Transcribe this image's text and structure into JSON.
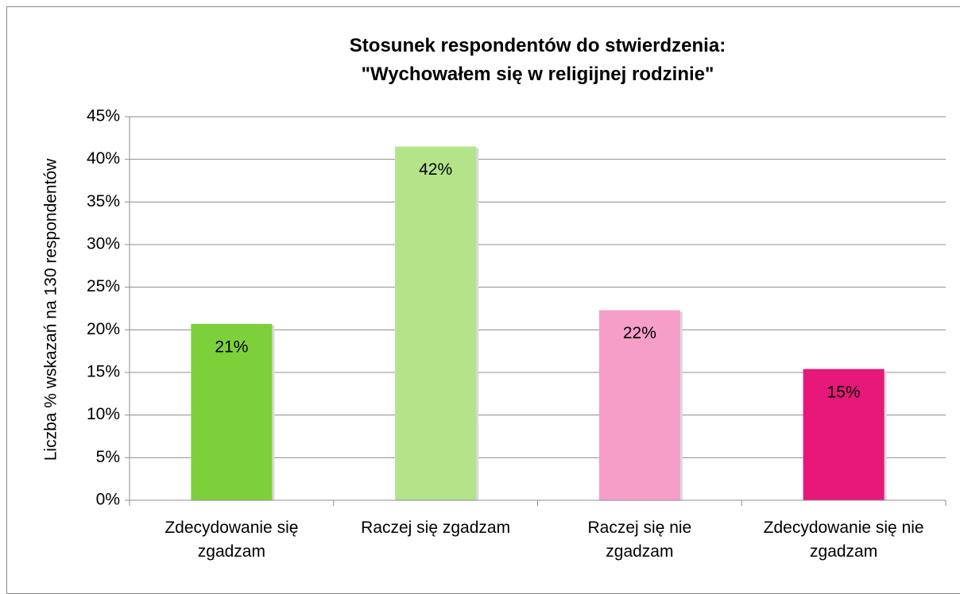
{
  "chart_data": {
    "type": "bar",
    "title": "Stosunek respondentów do stwierdzenia:\n\"Wychowałem się w religijnej rodzinie\"",
    "y_label": "Liczba % wskazań na 130 respondentów",
    "categories": [
      "Zdecydowanie się zgadzam",
      "Raczej się zgadzam",
      "Raczej się nie zgadzam",
      "Zdecydowanie się nie zgadzam"
    ],
    "values": [
      20.7,
      41.5,
      22.3,
      15.4
    ],
    "value_labels": [
      "21%",
      "42%",
      "22%",
      "15%"
    ],
    "colors": [
      "#7ed03a",
      "#b3e48a",
      "#f59fc8",
      "#e8177a"
    ],
    "ylim": [
      0,
      45
    ],
    "yticks": [
      {
        "value": 0,
        "label": "0%"
      },
      {
        "value": 5,
        "label": "5%"
      },
      {
        "value": 10,
        "label": "10%"
      },
      {
        "value": 15,
        "label": "15%"
      },
      {
        "value": 20,
        "label": "20%"
      },
      {
        "value": 25,
        "label": "25%"
      },
      {
        "value": 30,
        "label": "30%"
      },
      {
        "value": 35,
        "label": "35%"
      },
      {
        "value": 40,
        "label": "40%"
      },
      {
        "value": 45,
        "label": "45%"
      }
    ],
    "grid": true
  }
}
